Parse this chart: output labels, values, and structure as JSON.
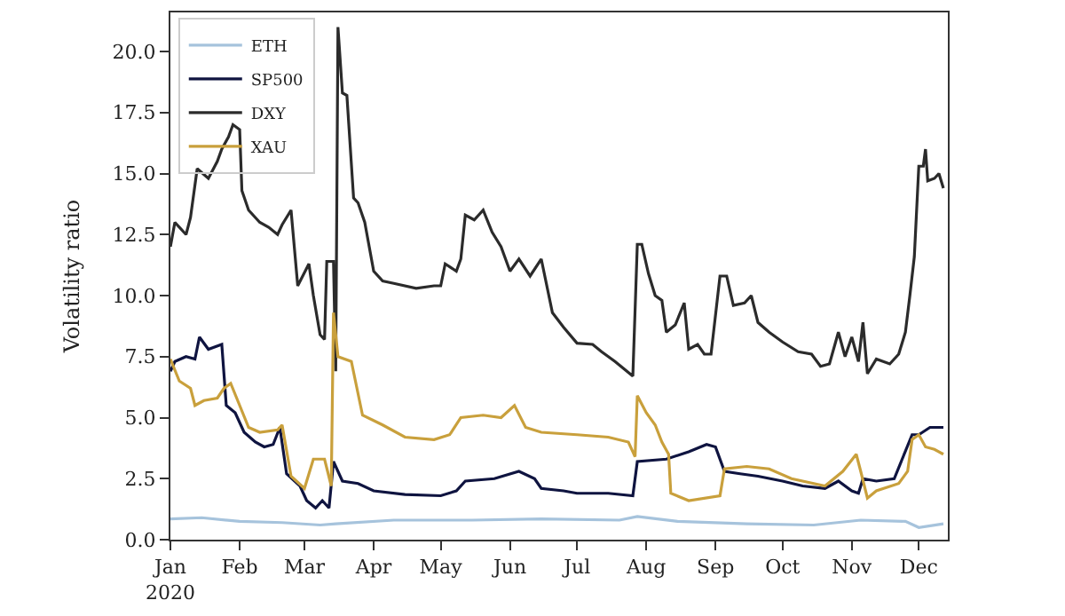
{
  "chart_data": {
    "type": "line",
    "ylabel": "Volatility ratio",
    "legend": "top left",
    "xlim": [
      "2020-01-01",
      "2020-12-14"
    ],
    "ylim": [
      0,
      21.6
    ],
    "xticks": [
      {
        "value": "2020-01-01",
        "label": "Jan\n2020"
      },
      {
        "value": "2020-02-01",
        "label": "Feb"
      },
      {
        "value": "2020-03-01",
        "label": "Mar"
      },
      {
        "value": "2020-04-01",
        "label": "Apr"
      },
      {
        "value": "2020-05-01",
        "label": "May"
      },
      {
        "value": "2020-06-01",
        "label": "Jun"
      },
      {
        "value": "2020-07-01",
        "label": "Jul"
      },
      {
        "value": "2020-08-01",
        "label": "Aug"
      },
      {
        "value": "2020-09-01",
        "label": "Sep"
      },
      {
        "value": "2020-10-01",
        "label": "Oct"
      },
      {
        "value": "2020-11-01",
        "label": "Nov"
      },
      {
        "value": "2020-12-01",
        "label": "Dec"
      }
    ],
    "yticks": [
      {
        "value": 0,
        "label": "0.0"
      },
      {
        "value": 2.5,
        "label": "2.5"
      },
      {
        "value": 5,
        "label": "5.0"
      },
      {
        "value": 7.5,
        "label": "7.5"
      },
      {
        "value": 10,
        "label": "10.0"
      },
      {
        "value": 12.5,
        "label": "12.5"
      },
      {
        "value": 15,
        "label": "15.0"
      },
      {
        "value": 17.5,
        "label": "17.5"
      },
      {
        "value": 20,
        "label": "20.0"
      }
    ],
    "series": [
      {
        "name": "ETH",
        "color": "#a6c3dc",
        "x": [
          "2020-01-01",
          "2020-01-15",
          "2020-02-01",
          "2020-02-20",
          "2020-03-08",
          "2020-03-15",
          "2020-04-10",
          "2020-05-15",
          "2020-06-15",
          "2020-07-20",
          "2020-07-28",
          "2020-08-15",
          "2020-09-15",
          "2020-10-15",
          "2020-11-05",
          "2020-11-25",
          "2020-12-01",
          "2020-12-12"
        ],
        "values": [
          0.85,
          0.9,
          0.75,
          0.7,
          0.6,
          0.65,
          0.8,
          0.8,
          0.85,
          0.8,
          0.95,
          0.75,
          0.65,
          0.6,
          0.8,
          0.75,
          0.5,
          0.65
        ]
      },
      {
        "name": "SP500",
        "color": "#0f1440",
        "x": [
          "2020-01-01",
          "2020-01-03",
          "2020-01-08",
          "2020-01-12",
          "2020-01-14",
          "2020-01-18",
          "2020-01-24",
          "2020-01-26",
          "2020-01-30",
          "2020-02-03",
          "2020-02-08",
          "2020-02-12",
          "2020-02-16",
          "2020-02-19",
          "2020-02-22",
          "2020-02-28",
          "2020-03-02",
          "2020-03-06",
          "2020-03-09",
          "2020-03-12",
          "2020-03-14",
          "2020-03-18",
          "2020-03-25",
          "2020-04-01",
          "2020-04-15",
          "2020-05-01",
          "2020-05-08",
          "2020-05-12",
          "2020-05-25",
          "2020-06-05",
          "2020-06-12",
          "2020-06-15",
          "2020-06-25",
          "2020-07-01",
          "2020-07-15",
          "2020-07-26",
          "2020-07-28",
          "2020-08-10",
          "2020-08-20",
          "2020-08-28",
          "2020-09-01",
          "2020-09-05",
          "2020-09-12",
          "2020-09-20",
          "2020-10-01",
          "2020-10-10",
          "2020-10-20",
          "2020-10-26",
          "2020-11-01",
          "2020-11-04",
          "2020-11-06",
          "2020-11-12",
          "2020-11-20",
          "2020-11-28",
          "2020-12-01",
          "2020-12-06",
          "2020-12-12"
        ],
        "values": [
          6.9,
          7.3,
          7.5,
          7.4,
          8.3,
          7.8,
          8.0,
          5.5,
          5.2,
          4.4,
          4.0,
          3.8,
          3.9,
          4.6,
          2.7,
          2.2,
          1.6,
          1.3,
          1.6,
          1.3,
          3.2,
          2.4,
          2.3,
          2.0,
          1.85,
          1.8,
          2.0,
          2.4,
          2.5,
          2.8,
          2.5,
          2.1,
          2.0,
          1.9,
          1.9,
          1.8,
          3.2,
          3.3,
          3.6,
          3.9,
          3.8,
          2.8,
          2.7,
          2.6,
          2.4,
          2.2,
          2.1,
          2.4,
          2.0,
          1.9,
          2.5,
          2.4,
          2.5,
          4.3,
          4.3,
          4.6,
          4.6
        ]
      },
      {
        "name": "DXY",
        "color": "#2b2b2b",
        "x": [
          "2020-01-01",
          "2020-01-03",
          "2020-01-08",
          "2020-01-10",
          "2020-01-13",
          "2020-01-18",
          "2020-01-22",
          "2020-01-24",
          "2020-01-27",
          "2020-01-29",
          "2020-02-01",
          "2020-02-02",
          "2020-02-05",
          "2020-02-10",
          "2020-02-14",
          "2020-02-18",
          "2020-02-20",
          "2020-02-24",
          "2020-02-27",
          "2020-03-03",
          "2020-03-05",
          "2020-03-08",
          "2020-03-10",
          "2020-03-11",
          "2020-03-14",
          "2020-03-15",
          "2020-03-16",
          "2020-03-18",
          "2020-03-20",
          "2020-03-23",
          "2020-03-25",
          "2020-03-28",
          "2020-04-01",
          "2020-04-05",
          "2020-04-10",
          "2020-04-20",
          "2020-04-28",
          "2020-05-01",
          "2020-05-03",
          "2020-05-08",
          "2020-05-10",
          "2020-05-12",
          "2020-05-16",
          "2020-05-20",
          "2020-05-24",
          "2020-05-28",
          "2020-06-01",
          "2020-06-05",
          "2020-06-10",
          "2020-06-15",
          "2020-06-20",
          "2020-06-25",
          "2020-07-01",
          "2020-07-08",
          "2020-07-12",
          "2020-07-18",
          "2020-07-22",
          "2020-07-26",
          "2020-07-28",
          "2020-07-30",
          "2020-08-02",
          "2020-08-05",
          "2020-08-08",
          "2020-08-10",
          "2020-08-14",
          "2020-08-18",
          "2020-08-20",
          "2020-08-24",
          "2020-08-27",
          "2020-08-30",
          "2020-09-03",
          "2020-09-06",
          "2020-09-09",
          "2020-09-14",
          "2020-09-17",
          "2020-09-20",
          "2020-09-25",
          "2020-10-01",
          "2020-10-08",
          "2020-10-14",
          "2020-10-18",
          "2020-10-22",
          "2020-10-26",
          "2020-10-29",
          "2020-11-01",
          "2020-11-04",
          "2020-11-06",
          "2020-11-08",
          "2020-11-12",
          "2020-11-18",
          "2020-11-22",
          "2020-11-25",
          "2020-11-27",
          "2020-11-29",
          "2020-12-01",
          "2020-12-03",
          "2020-12-04",
          "2020-12-05",
          "2020-12-08",
          "2020-12-10",
          "2020-12-12"
        ],
        "values": [
          12.0,
          13.0,
          12.5,
          13.2,
          15.2,
          14.8,
          15.5,
          16.0,
          16.5,
          17.0,
          16.8,
          14.3,
          13.5,
          13.0,
          12.8,
          12.5,
          12.9,
          13.5,
          10.4,
          11.3,
          10.0,
          8.4,
          8.2,
          11.4,
          11.4,
          6.9,
          21.0,
          18.3,
          18.2,
          14.0,
          13.8,
          13.0,
          11.0,
          10.6,
          10.5,
          10.3,
          10.4,
          10.4,
          11.3,
          11.0,
          11.5,
          13.3,
          13.1,
          13.5,
          12.6,
          12.0,
          11.0,
          11.5,
          10.8,
          11.5,
          9.3,
          8.7,
          8.05,
          8.0,
          7.7,
          7.3,
          7.0,
          6.7,
          12.1,
          12.1,
          10.9,
          10.0,
          9.8,
          8.5,
          8.8,
          9.7,
          7.8,
          8.0,
          7.6,
          7.6,
          10.8,
          10.8,
          9.6,
          9.7,
          10.0,
          8.9,
          8.5,
          8.1,
          7.7,
          7.6,
          7.1,
          7.2,
          8.5,
          7.5,
          8.3,
          7.3,
          8.9,
          6.8,
          7.4,
          7.2,
          7.6,
          8.5,
          10.0,
          11.6,
          15.3,
          15.3,
          16.0,
          14.7,
          14.8,
          15.0,
          14.4
        ]
      },
      {
        "name": "XAU",
        "color": "#c9a03c",
        "x": [
          "2020-01-01",
          "2020-01-05",
          "2020-01-10",
          "2020-01-12",
          "2020-01-16",
          "2020-01-22",
          "2020-01-25",
          "2020-01-28",
          "2020-02-01",
          "2020-02-05",
          "2020-02-10",
          "2020-02-18",
          "2020-02-20",
          "2020-02-24",
          "2020-03-01",
          "2020-03-05",
          "2020-03-10",
          "2020-03-13",
          "2020-03-14",
          "2020-03-16",
          "2020-03-22",
          "2020-03-27",
          "2020-04-05",
          "2020-04-15",
          "2020-04-28",
          "2020-05-05",
          "2020-05-10",
          "2020-05-20",
          "2020-05-28",
          "2020-06-03",
          "2020-06-08",
          "2020-06-15",
          "2020-07-01",
          "2020-07-15",
          "2020-07-24",
          "2020-07-27",
          "2020-07-28",
          "2020-08-01",
          "2020-08-05",
          "2020-08-08",
          "2020-08-11",
          "2020-08-12",
          "2020-08-20",
          "2020-09-03",
          "2020-09-05",
          "2020-09-15",
          "2020-09-25",
          "2020-10-05",
          "2020-10-20",
          "2020-10-28",
          "2020-11-03",
          "2020-11-05",
          "2020-11-08",
          "2020-11-12",
          "2020-11-22",
          "2020-11-26",
          "2020-11-28",
          "2020-12-01",
          "2020-12-04",
          "2020-12-08",
          "2020-12-12"
        ],
        "values": [
          7.4,
          6.5,
          6.2,
          5.5,
          5.7,
          5.8,
          6.2,
          6.4,
          5.5,
          4.6,
          4.4,
          4.5,
          4.7,
          2.6,
          2.1,
          3.3,
          3.3,
          2.2,
          9.3,
          7.5,
          7.3,
          5.1,
          4.7,
          4.2,
          4.1,
          4.3,
          5.0,
          5.1,
          5.0,
          5.5,
          4.6,
          4.4,
          4.3,
          4.2,
          4.0,
          3.4,
          5.9,
          5.2,
          4.7,
          4.0,
          3.5,
          1.9,
          1.6,
          1.8,
          2.9,
          3.0,
          2.9,
          2.5,
          2.2,
          2.8,
          3.5,
          2.8,
          1.7,
          2.0,
          2.3,
          2.8,
          4.1,
          4.3,
          3.8,
          3.7,
          3.5
        ]
      }
    ]
  }
}
